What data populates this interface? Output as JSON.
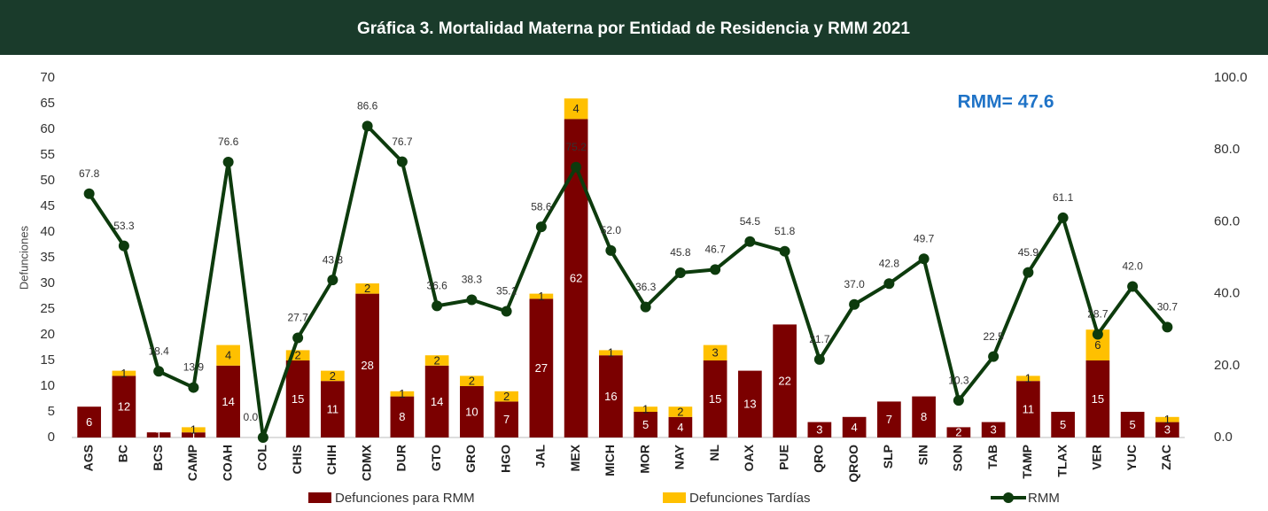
{
  "chart_data": {
    "type": "bar-line",
    "title": "Gráfica 3.  Mortalidad Materna por Entidad de Residencia  y RMM 2021",
    "annotation": "RMM= 47.6",
    "y_label": "Defunciones",
    "categories": [
      "AGS",
      "BC",
      "BCS",
      "CAMP",
      "COAH",
      "COL",
      "CHIS",
      "CHIH",
      "CDMX",
      "DUR",
      "GTO",
      "GRO",
      "HGO",
      "JAL",
      "MEX",
      "MICH",
      "MOR",
      "NAY",
      "NL",
      "OAX",
      "PUE",
      "QRO",
      "QROO",
      "SLP",
      "SIN",
      "SON",
      "TAB",
      "TAMP",
      "TLAX",
      "VER",
      "YUC",
      "ZAC"
    ],
    "series": [
      {
        "name": "Defunciones para RMM",
        "type": "bar",
        "color": "#7b0000",
        "values": [
          6,
          12,
          1,
          1,
          14,
          0,
          15,
          11,
          28,
          8,
          14,
          10,
          7,
          27,
          62,
          16,
          5,
          4,
          15,
          13,
          22,
          3,
          4,
          7,
          8,
          2,
          3,
          11,
          5,
          15,
          5,
          3
        ]
      },
      {
        "name": "Defunciones Tardías",
        "type": "bar",
        "color": "#ffc000",
        "values": [
          0,
          1,
          0,
          1,
          4,
          0,
          2,
          2,
          2,
          1,
          2,
          2,
          2,
          1,
          4,
          1,
          1,
          2,
          3,
          0,
          0,
          0,
          0,
          0,
          0,
          0,
          0,
          1,
          0,
          6,
          0,
          1
        ]
      },
      {
        "name": "RMM",
        "type": "line",
        "axis": "y2",
        "color": "#0d3b0d",
        "values": [
          67.8,
          53.3,
          18.4,
          13.9,
          76.6,
          0.0,
          27.7,
          43.8,
          86.6,
          76.7,
          36.6,
          38.3,
          35.1,
          58.6,
          75.2,
          52.0,
          36.3,
          45.8,
          46.7,
          54.5,
          51.8,
          21.7,
          37.0,
          42.8,
          49.7,
          10.3,
          22.5,
          45.9,
          61.1,
          28.7,
          42.0,
          30.7
        ],
        "value_labels": [
          "67.8",
          "53.3",
          "18.4",
          "13.9",
          "76.6",
          "0.0",
          "27.7",
          "43.8",
          "86.6",
          "76.7",
          "36.6",
          "38.3",
          "35.1",
          "58.6",
          "75.2",
          "52.0",
          "36.3",
          "45.8",
          "46.7",
          "54.5",
          "51.8",
          "21.7",
          "37.0",
          "42.8",
          "49.7",
          "10.3",
          "22.5",
          "45.9",
          "61.1",
          "28.7",
          "42.0",
          "30.7"
        ]
      }
    ],
    "ylim": [
      0,
      70
    ],
    "yticks": [
      0,
      5,
      10,
      15,
      20,
      25,
      30,
      35,
      40,
      45,
      50,
      55,
      60,
      65,
      70
    ],
    "y2lim": [
      0,
      100
    ],
    "y2ticks": [
      {
        "value": 0,
        "label": "0.0"
      },
      {
        "value": 20,
        "label": "20.0"
      },
      {
        "value": 40,
        "label": "40.0"
      },
      {
        "value": 60,
        "label": "60.0"
      },
      {
        "value": 80,
        "label": "80.0"
      },
      {
        "value": 100,
        "label": "100.0"
      }
    ]
  }
}
